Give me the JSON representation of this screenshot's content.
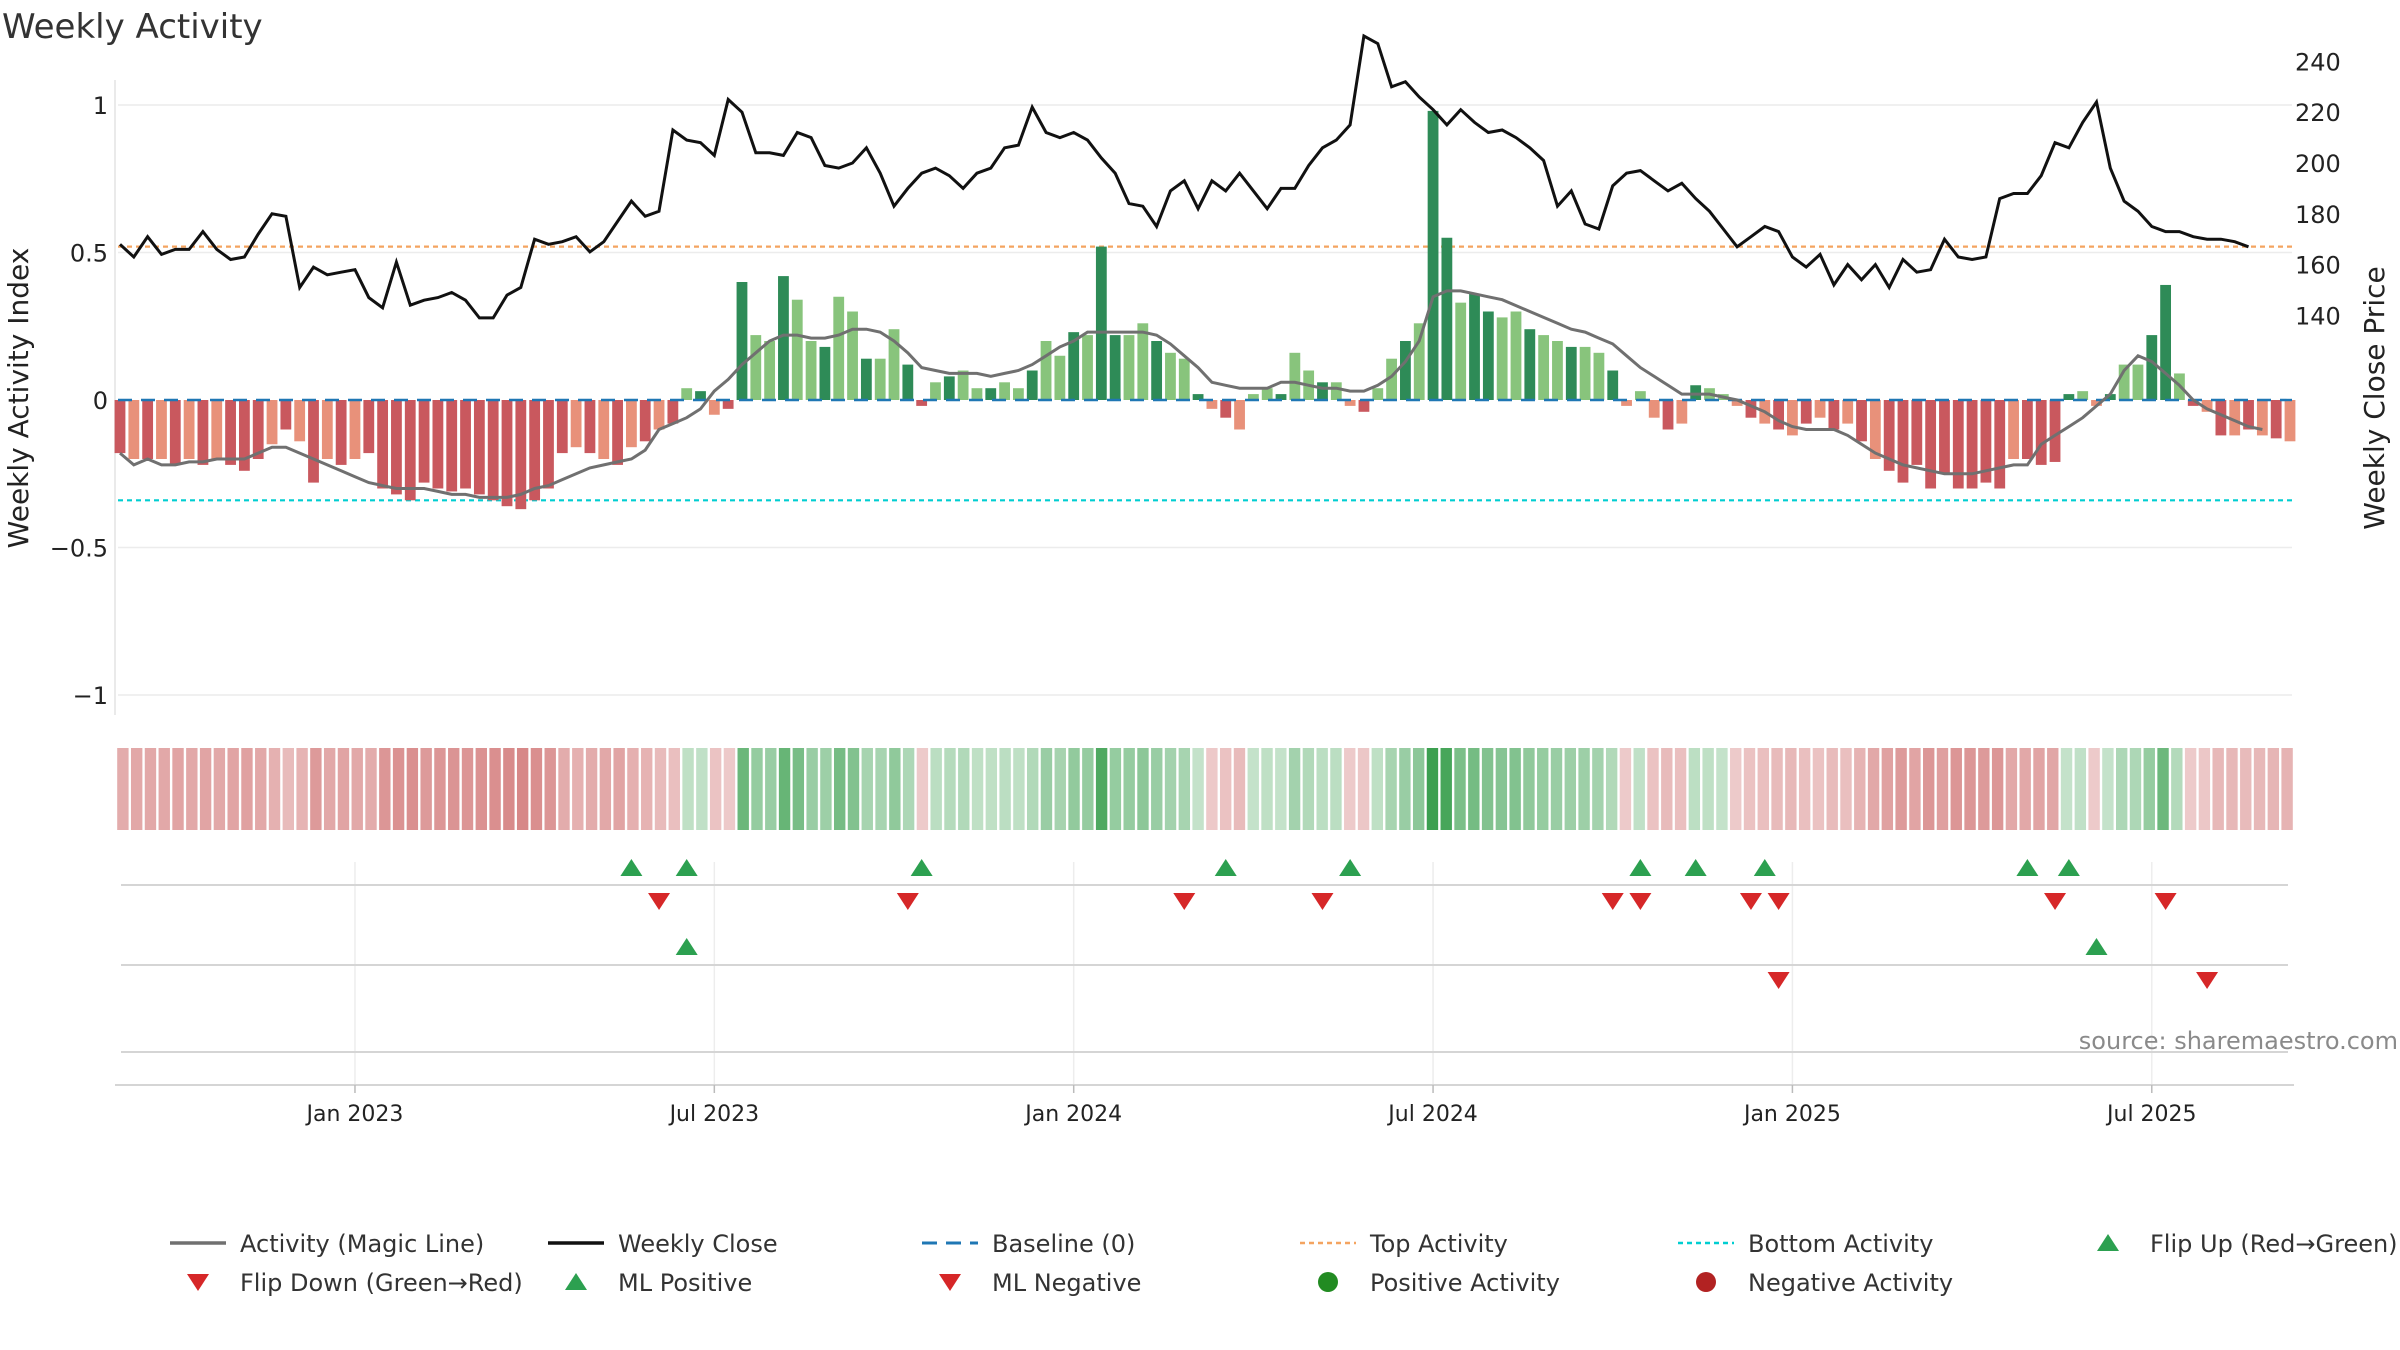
{
  "title": "Weekly Activity",
  "source": "source: sharemaestro.com",
  "colors": {
    "strong_pos": "#2e8b57",
    "light_pos": "#88c47c",
    "strong_neg": "#c9585e",
    "light_neg": "#e8917a",
    "close": "#111111",
    "magic": "#707070",
    "baseline": "#1f77b4",
    "top": "#f4a460",
    "bottom": "#00ced1",
    "up": "#2ca050",
    "down": "#d62728",
    "pos_dot": "#228b22",
    "neg_dot": "#b22222"
  },
  "chart_data": {
    "type": "bar+line",
    "title": "Weekly Activity",
    "ylabel": "Weekly Activity Index",
    "y2label": "Weekly Close Price",
    "ylim": [
      -1.1,
      1.1
    ],
    "y2lim": [
      130,
      253
    ],
    "yticks": [
      1,
      0.5,
      0,
      -0.5,
      -1
    ],
    "ytick_labels": [
      "1",
      "0.5",
      "0",
      "−0.5",
      "−1"
    ],
    "y2ticks": [
      240,
      220,
      200,
      180,
      160,
      140
    ],
    "xticks": [
      "Jan 2023",
      "Jul 2023",
      "Jan 2024",
      "Jul 2024",
      "Jan 2025",
      "Jul 2025"
    ],
    "xtick_week_index": [
      17,
      43,
      69,
      95,
      121,
      147
    ],
    "top_activity": 0.52,
    "bottom_activity": -0.34,
    "baseline": 0,
    "activity": [
      -0.18,
      -0.2,
      -0.2,
      -0.2,
      -0.22,
      -0.2,
      -0.22,
      -0.2,
      -0.22,
      -0.24,
      -0.2,
      -0.15,
      -0.1,
      -0.14,
      -0.28,
      -0.2,
      -0.22,
      -0.2,
      -0.18,
      -0.3,
      -0.32,
      -0.34,
      -0.28,
      -0.3,
      -0.31,
      -0.3,
      -0.32,
      -0.34,
      -0.36,
      -0.37,
      -0.34,
      -0.3,
      -0.18,
      -0.16,
      -0.18,
      -0.2,
      -0.22,
      -0.16,
      -0.14,
      -0.1,
      -0.08,
      0.04,
      0.03,
      -0.05,
      -0.03,
      0.4,
      0.22,
      0.2,
      0.42,
      0.34,
      0.2,
      0.18,
      0.35,
      0.3,
      0.14,
      0.14,
      0.24,
      0.12,
      -0.02,
      0.06,
      0.08,
      0.1,
      0.04,
      0.04,
      0.06,
      0.04,
      0.1,
      0.2,
      0.15,
      0.23,
      0.22,
      0.52,
      0.22,
      0.22,
      0.26,
      0.2,
      0.16,
      0.14,
      0.02,
      -0.03,
      -0.06,
      -0.1,
      0.02,
      0.04,
      0.02,
      0.16,
      0.1,
      0.06,
      0.06,
      -0.02,
      -0.04,
      0.04,
      0.14,
      0.2,
      0.26,
      0.98,
      0.55,
      0.33,
      0.36,
      0.3,
      0.28,
      0.3,
      0.24,
      0.22,
      0.2,
      0.18,
      0.18,
      0.16,
      0.1,
      -0.02,
      0.03,
      -0.06,
      -0.1,
      -0.08,
      0.05,
      0.04,
      0.02,
      -0.02,
      -0.06,
      -0.08,
      -0.1,
      -0.12,
      -0.08,
      -0.06,
      -0.1,
      -0.08,
      -0.14,
      -0.2,
      -0.24,
      -0.28,
      -0.22,
      -0.3,
      -0.25,
      -0.3,
      -0.3,
      -0.28,
      -0.3,
      -0.2,
      -0.2,
      -0.22,
      -0.21,
      0.02,
      0.03,
      -0.02,
      0.02,
      0.12,
      0.12,
      0.22,
      0.39,
      0.09,
      -0.02,
      -0.04,
      -0.12,
      -0.12,
      -0.1,
      -0.12,
      -0.13,
      -0.14
    ],
    "close": [
      168,
      163,
      171,
      164,
      166,
      166,
      173,
      166,
      162,
      163,
      172,
      180,
      179,
      151,
      159,
      156,
      157,
      158,
      147,
      143,
      161,
      144,
      146,
      147,
      149,
      146,
      139,
      139,
      148,
      151,
      170,
      168,
      169,
      171,
      165,
      169,
      177,
      185,
      179,
      181,
      213,
      209,
      208,
      203,
      225,
      220,
      204,
      204,
      203,
      212,
      210,
      199,
      198,
      200,
      206,
      196,
      183,
      190,
      196,
      198,
      195,
      190,
      196,
      198,
      206,
      207,
      222,
      212,
      210,
      212,
      209,
      202,
      196,
      184,
      183,
      175,
      189,
      193,
      182,
      193,
      189,
      196,
      189,
      182,
      190,
      190,
      199,
      206,
      209,
      215,
      250,
      247,
      230,
      232,
      226,
      221,
      215,
      221,
      216,
      212,
      213,
      210,
      206,
      201,
      183,
      189,
      176,
      174,
      191,
      196,
      197,
      193,
      189,
      192,
      186,
      181,
      174,
      167,
      171,
      175,
      173,
      163,
      159,
      164,
      152,
      160,
      154,
      160,
      151,
      162,
      157,
      158,
      170,
      163,
      162,
      163,
      186,
      188,
      188,
      195,
      208,
      206,
      216,
      224,
      198,
      185,
      181,
      175,
      173,
      173,
      171,
      170,
      170,
      169,
      167
    ],
    "magic": [
      -0.18,
      -0.22,
      -0.2,
      -0.22,
      -0.22,
      -0.21,
      -0.21,
      -0.2,
      -0.2,
      -0.2,
      -0.18,
      -0.16,
      -0.16,
      -0.18,
      -0.2,
      -0.22,
      -0.24,
      -0.26,
      -0.28,
      -0.29,
      -0.3,
      -0.3,
      -0.3,
      -0.31,
      -0.32,
      -0.32,
      -0.33,
      -0.33,
      -0.33,
      -0.32,
      -0.3,
      -0.29,
      -0.27,
      -0.25,
      -0.23,
      -0.22,
      -0.21,
      -0.2,
      -0.17,
      -0.1,
      -0.08,
      -0.06,
      -0.03,
      0.03,
      0.07,
      0.12,
      0.16,
      0.2,
      0.22,
      0.22,
      0.21,
      0.21,
      0.22,
      0.24,
      0.24,
      0.23,
      0.2,
      0.16,
      0.11,
      0.1,
      0.09,
      0.09,
      0.09,
      0.08,
      0.09,
      0.1,
      0.12,
      0.15,
      0.18,
      0.2,
      0.23,
      0.23,
      0.23,
      0.23,
      0.23,
      0.22,
      0.19,
      0.15,
      0.11,
      0.06,
      0.05,
      0.04,
      0.04,
      0.04,
      0.06,
      0.06,
      0.05,
      0.04,
      0.04,
      0.03,
      0.03,
      0.05,
      0.08,
      0.13,
      0.2,
      0.35,
      0.37,
      0.37,
      0.36,
      0.35,
      0.34,
      0.32,
      0.3,
      0.28,
      0.26,
      0.24,
      0.23,
      0.21,
      0.19,
      0.15,
      0.11,
      0.08,
      0.05,
      0.02,
      0.02,
      0.02,
      0.01,
      0.0,
      -0.02,
      -0.04,
      -0.07,
      -0.09,
      -0.1,
      -0.1,
      -0.1,
      -0.12,
      -0.15,
      -0.18,
      -0.2,
      -0.22,
      -0.23,
      -0.24,
      -0.25,
      -0.25,
      -0.25,
      -0.24,
      -0.23,
      -0.22,
      -0.22,
      -0.15,
      -0.12,
      -0.09,
      -0.06,
      -0.02,
      0.02,
      0.1,
      0.15,
      0.13,
      0.09,
      0.05,
      0.0,
      -0.03,
      -0.05,
      -0.07,
      -0.09,
      -0.1
    ],
    "flip_up_weeks": [
      37,
      41,
      58,
      80,
      89,
      110,
      114,
      119,
      138,
      141
    ],
    "flip_down_weeks": [
      39,
      57,
      77,
      87,
      108,
      110,
      118,
      120,
      140,
      148
    ],
    "ml_positive_weeks": [
      41,
      143
    ],
    "ml_negative_weeks": [
      120,
      151
    ],
    "legend": [
      {
        "label": "Activity (Magic Line)",
        "kind": "line",
        "color": "#707070"
      },
      {
        "label": "Weekly Close",
        "kind": "line",
        "color": "#111111"
      },
      {
        "label": "Baseline (0)",
        "kind": "dash",
        "color": "#1f77b4"
      },
      {
        "label": "Top Activity",
        "kind": "dot-line",
        "color": "#f4a460"
      },
      {
        "label": "Bottom Activity",
        "kind": "dot-line",
        "color": "#00ced1"
      },
      {
        "label": "Flip Up (Red→Green)",
        "kind": "tri-up",
        "color": "#2ca050"
      },
      {
        "label": "Flip Down (Green→Red)",
        "kind": "tri-down",
        "color": "#d62728"
      },
      {
        "label": "ML Positive",
        "kind": "tri-up",
        "color": "#2ca050"
      },
      {
        "label": "ML Negative",
        "kind": "tri-down",
        "color": "#d62728"
      },
      {
        "label": "Positive Activity",
        "kind": "circle",
        "color": "#228b22"
      },
      {
        "label": "Negative Activity",
        "kind": "circle",
        "color": "#b22222"
      }
    ]
  }
}
